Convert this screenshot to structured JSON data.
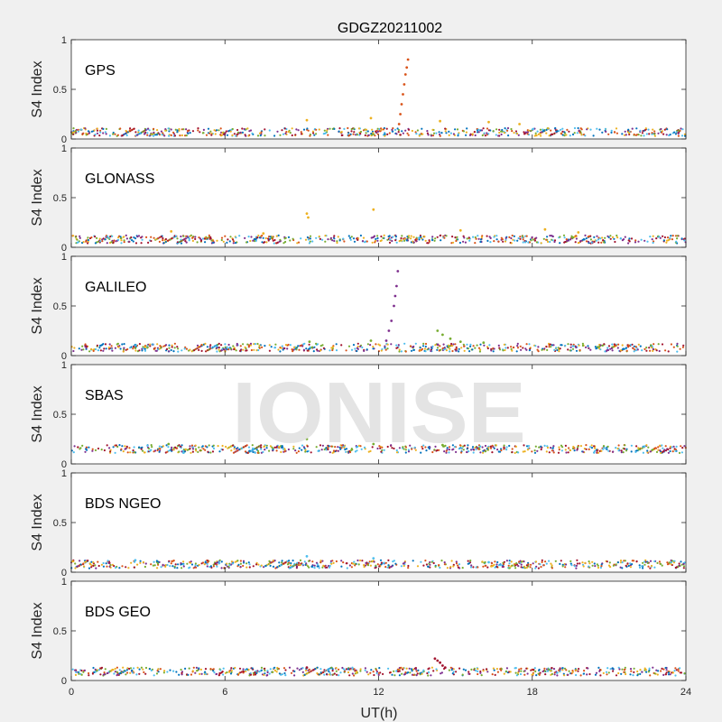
{
  "figure": {
    "title": "GDGZ20211002",
    "xlabel": "UT(h)",
    "watermark": "IONISE"
  },
  "colors": {
    "palette": [
      "#0072BD",
      "#D95319",
      "#EDB120",
      "#7E2F8E",
      "#77AC30",
      "#4DBEEE",
      "#A2142F"
    ]
  },
  "chart_data": [
    {
      "type": "scatter",
      "panel_label": "GPS",
      "ylabel": "S4 Index",
      "xlim": [
        0,
        24
      ],
      "ylim": [
        0,
        1
      ],
      "xticks": [
        0,
        6,
        12,
        18,
        24
      ],
      "yticks": [
        0,
        0.5,
        1
      ],
      "ytick_labels": [
        "0",
        "0.5",
        "1"
      ],
      "baseline": 0.07,
      "series": [
        {
          "values": [
            [
              12.8,
              0.15
            ],
            [
              12.85,
              0.25
            ],
            [
              12.9,
              0.35
            ],
            [
              12.95,
              0.45
            ],
            [
              13.0,
              0.55
            ],
            [
              13.05,
              0.65
            ],
            [
              13.1,
              0.72
            ],
            [
              13.15,
              0.8
            ]
          ]
        },
        {
          "values": [
            [
              9.2,
              0.19
            ],
            [
              11.7,
              0.21
            ],
            [
              14.4,
              0.18
            ],
            [
              16.3,
              0.17
            ],
            [
              17.5,
              0.15
            ]
          ]
        }
      ]
    },
    {
      "type": "scatter",
      "panel_label": "GLONASS",
      "ylabel": "S4 Index",
      "xlim": [
        0,
        24
      ],
      "ylim": [
        0,
        1
      ],
      "xticks": [
        0,
        6,
        12,
        18,
        24
      ],
      "yticks": [
        0,
        0.5,
        1
      ],
      "ytick_labels": [
        "0",
        "0.5",
        "1"
      ],
      "baseline": 0.08,
      "series": [
        {
          "values": [
            [
              9.2,
              0.34
            ],
            [
              9.25,
              0.3
            ],
            [
              11.8,
              0.38
            ],
            [
              3.9,
              0.16
            ],
            [
              7.5,
              0.14
            ],
            [
              15.2,
              0.17
            ],
            [
              18.5,
              0.18
            ],
            [
              19.8,
              0.15
            ]
          ]
        }
      ]
    },
    {
      "type": "scatter",
      "panel_label": "GALILEO",
      "ylabel": "S4 Index",
      "xlim": [
        0,
        24
      ],
      "ylim": [
        0,
        1
      ],
      "xticks": [
        0,
        6,
        12,
        18,
        24
      ],
      "yticks": [
        0,
        0.5,
        1
      ],
      "ytick_labels": [
        "0",
        "0.5",
        "1"
      ],
      "baseline": 0.08,
      "series": [
        {
          "values": [
            [
              12.3,
              0.15
            ],
            [
              12.4,
              0.25
            ],
            [
              12.5,
              0.35
            ],
            [
              12.6,
              0.5
            ],
            [
              12.65,
              0.6
            ],
            [
              12.7,
              0.7
            ],
            [
              12.75,
              0.85
            ]
          ]
        },
        {
          "values": [
            [
              14.3,
              0.25
            ],
            [
              14.5,
              0.21
            ],
            [
              14.8,
              0.17
            ],
            [
              15.2,
              0.14
            ],
            [
              16.1,
              0.13
            ],
            [
              9.3,
              0.14
            ],
            [
              11.7,
              0.15
            ]
          ]
        }
      ]
    },
    {
      "type": "scatter",
      "panel_label": "SBAS",
      "ylabel": "S4 Index",
      "xlim": [
        0,
        24
      ],
      "ylim": [
        0,
        1
      ],
      "xticks": [
        0,
        6,
        12,
        18,
        24
      ],
      "yticks": [
        0,
        0.5,
        1
      ],
      "ytick_labels": [
        "0",
        "0.5",
        "1"
      ],
      "baseline": 0.15,
      "series": [
        {
          "values": [
            [
              9.2,
              0.25
            ],
            [
              11.8,
              0.2
            ],
            [
              3.8,
              0.2
            ],
            [
              14.5,
              0.19
            ]
          ]
        }
      ]
    },
    {
      "type": "scatter",
      "panel_label": "BDS NGEO",
      "ylabel": "S4 Index",
      "xlim": [
        0,
        24
      ],
      "ylim": [
        0,
        1
      ],
      "xticks": [
        0,
        6,
        12,
        18,
        24
      ],
      "yticks": [
        0,
        0.5,
        1
      ],
      "ytick_labels": [
        "0",
        "0.5",
        "1"
      ],
      "baseline": 0.08,
      "series": [
        {
          "values": [
            [
              9.2,
              0.16
            ],
            [
              11.8,
              0.14
            ],
            [
              2.5,
              0.12
            ],
            [
              16.3,
              0.1
            ]
          ]
        }
      ]
    },
    {
      "type": "scatter",
      "panel_label": "BDS GEO",
      "ylabel": "S4 Index",
      "xlim": [
        0,
        24
      ],
      "ylim": [
        0,
        1
      ],
      "xticks": [
        0,
        6,
        12,
        18,
        24
      ],
      "yticks": [
        0,
        0.5,
        1
      ],
      "ytick_labels": [
        "0",
        "0.5",
        "1"
      ],
      "baseline": 0.09,
      "series": [
        {
          "values": [
            [
              14.2,
              0.22
            ],
            [
              14.3,
              0.2
            ],
            [
              14.4,
              0.18
            ],
            [
              14.5,
              0.15
            ],
            [
              14.6,
              0.13
            ],
            [
              9.2,
              0.13
            ]
          ]
        }
      ]
    }
  ]
}
